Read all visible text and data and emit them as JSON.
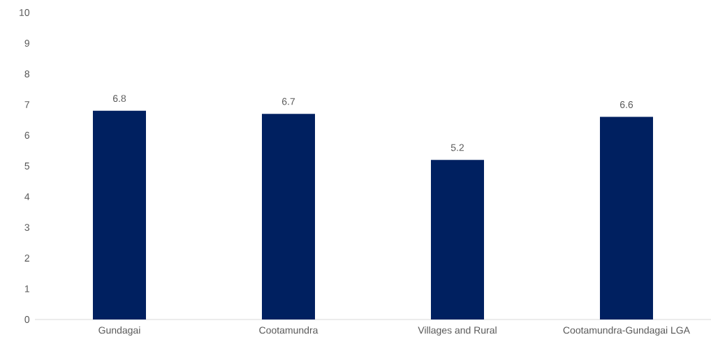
{
  "chart_data": {
    "type": "bar",
    "categories": [
      "Gundagai",
      "Cootamundra",
      "Villages and Rural",
      "Cootamundra-Gundagai LGA"
    ],
    "values": [
      6.8,
      6.7,
      5.2,
      6.6
    ],
    "color": "#002060",
    "ylim": [
      0,
      10
    ],
    "yticks": [
      0,
      1,
      2,
      3,
      4,
      5,
      6,
      7,
      8,
      9,
      10
    ],
    "data_labels": true
  }
}
